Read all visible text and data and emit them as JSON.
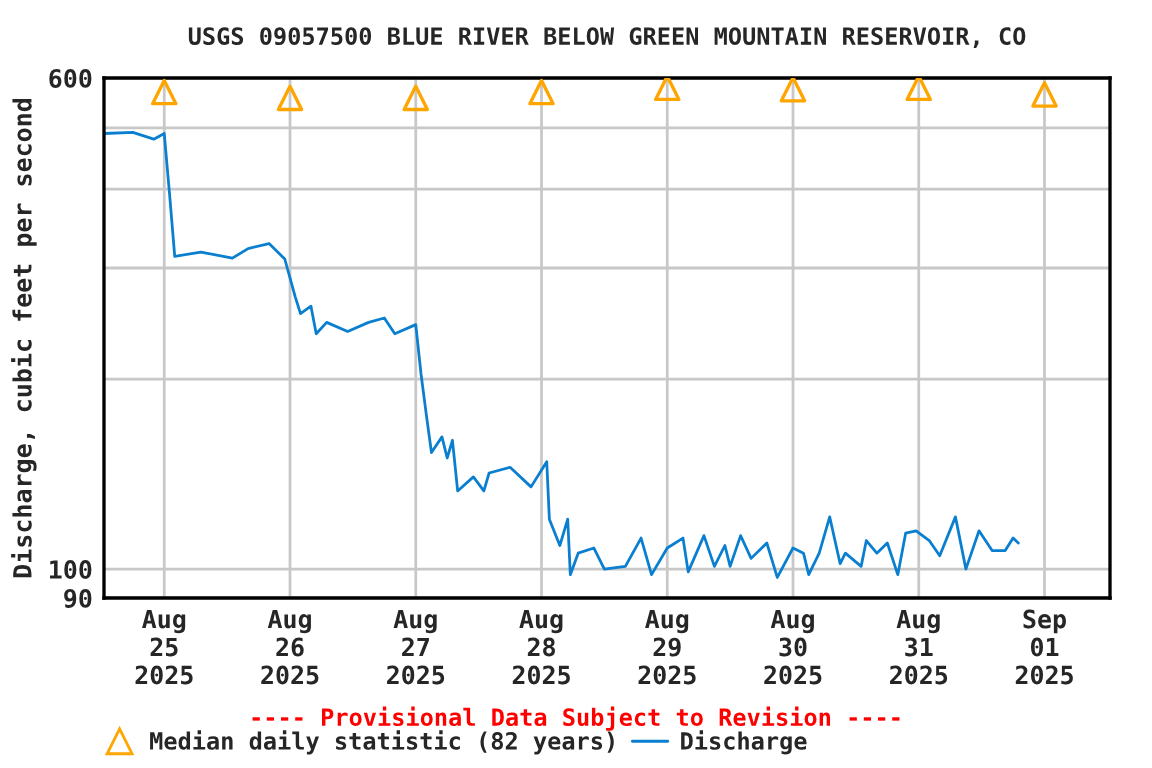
{
  "chart_data": {
    "type": "line",
    "title": "USGS 09057500 BLUE RIVER BELOW GREEN MOUNTAIN RESERVOIR, CO",
    "ylabel": "Discharge, cubic feet per second",
    "annotations": [
      "---- Provisional Data Subject to Revision ----"
    ],
    "log": "y",
    "grid": true,
    "legend": "bottom",
    "xlim": [
      "2025-08-24T12:30",
      "2025-09-01T12:30"
    ],
    "xticks": [
      {
        "value": "2025-08-25",
        "label": "Aug\n25\n2025"
      },
      {
        "value": "2025-08-26",
        "label": "Aug\n26\n2025"
      },
      {
        "value": "2025-08-27",
        "label": "Aug\n27\n2025"
      },
      {
        "value": "2025-08-28",
        "label": "Aug\n28\n2025"
      },
      {
        "value": "2025-08-29",
        "label": "Aug\n29\n2025"
      },
      {
        "value": "2025-08-30",
        "label": "Aug\n30\n2025"
      },
      {
        "value": "2025-08-31",
        "label": "Aug\n31\n2025"
      },
      {
        "value": "2025-09-01",
        "label": "Sep\n01\n2025"
      }
    ],
    "ylim": [
      90,
      600
    ],
    "yticks": [
      90,
      100,
      {
        "value": 200,
        "label": null
      },
      {
        "value": 300,
        "label": null
      },
      {
        "value": 400,
        "label": null
      },
      {
        "value": 500,
        "label": null
      },
      600
    ],
    "series": [
      {
        "name": "Median daily statistic (82 years)",
        "type": "scatter",
        "marker": "triangle",
        "color": "#ffa500",
        "x": [
          "2025-08-25",
          "2025-08-26",
          "2025-08-27",
          "2025-08-28",
          "2025-08-29",
          "2025-08-30",
          "2025-08-31",
          "2025-09-01"
        ],
        "values": [
          570,
          558,
          558,
          570,
          579,
          576,
          579,
          565
        ]
      },
      {
        "name": "Discharge",
        "color": "#0a7fd0",
        "line_style": "solid",
        "marker": "none",
        "x": [
          "2025-08-24T12:30",
          "2025-08-24T18:00",
          "2025-08-24T22:00",
          "2025-08-25T00:00",
          "2025-08-25T01:00",
          "2025-08-25T02:00",
          "2025-08-25T07:00",
          "2025-08-25T13:00",
          "2025-08-25T16:00",
          "2025-08-25T20:00",
          "2025-08-25T23:00",
          "2025-08-26T01:00",
          "2025-08-26T02:00",
          "2025-08-26T04:00",
          "2025-08-26T05:00",
          "2025-08-26T07:00",
          "2025-08-26T11:00",
          "2025-08-26T15:00",
          "2025-08-26T18:00",
          "2025-08-26T20:00",
          "2025-08-27T00:00",
          "2025-08-27T01:00",
          "2025-08-27T02:00",
          "2025-08-27T03:00",
          "2025-08-27T05:00",
          "2025-08-27T06:00",
          "2025-08-27T07:00",
          "2025-08-27T08:00",
          "2025-08-27T11:00",
          "2025-08-27T13:00",
          "2025-08-27T14:00",
          "2025-08-27T18:00",
          "2025-08-27T22:00",
          "2025-08-28T01:00",
          "2025-08-28T01:30",
          "2025-08-28T03:30",
          "2025-08-28T05:00",
          "2025-08-28T05:30",
          "2025-08-28T07:00",
          "2025-08-28T10:00",
          "2025-08-28T12:00",
          "2025-08-28T16:00",
          "2025-08-28T19:00",
          "2025-08-28T21:00",
          "2025-08-29T00:00",
          "2025-08-29T03:00",
          "2025-08-29T04:00",
          "2025-08-29T07:00",
          "2025-08-29T09:00",
          "2025-08-29T11:00",
          "2025-08-29T12:00",
          "2025-08-29T14:00",
          "2025-08-29T16:00",
          "2025-08-29T19:00",
          "2025-08-29T21:00",
          "2025-08-30T00:00",
          "2025-08-30T02:00",
          "2025-08-30T03:00",
          "2025-08-30T05:00",
          "2025-08-30T07:00",
          "2025-08-30T09:00",
          "2025-08-30T10:00",
          "2025-08-30T13:00",
          "2025-08-30T14:00",
          "2025-08-30T16:00",
          "2025-08-30T18:00",
          "2025-08-30T20:00",
          "2025-08-30T21:30",
          "2025-08-30T23:30",
          "2025-08-31T02:00",
          "2025-08-31T04:00",
          "2025-08-31T07:00",
          "2025-08-31T09:00",
          "2025-08-31T11:30",
          "2025-08-31T14:00",
          "2025-08-31T16:30",
          "2025-08-31T18:00",
          "2025-08-31T19:00"
        ],
        "values": [
          490,
          492,
          480,
          490,
          394,
          313,
          318,
          311,
          322,
          328,
          310,
          270,
          254,
          261,
          236,
          246,
          238,
          246,
          250,
          236,
          244,
          204,
          176,
          153,
          162,
          150,
          160,
          133,
          140,
          133,
          142,
          145,
          135,
          148,
          120,
          109,
          120,
          98,
          106,
          108,
          100,
          101,
          112,
          98,
          108,
          112,
          99,
          113,
          101,
          109,
          101,
          113,
          104,
          110,
          97,
          108,
          106,
          98,
          106,
          121,
          102,
          106,
          101,
          111,
          106,
          110,
          98,
          114,
          115,
          111,
          105,
          121,
          100,
          115,
          107,
          107,
          112,
          110
        ]
      }
    ]
  }
}
